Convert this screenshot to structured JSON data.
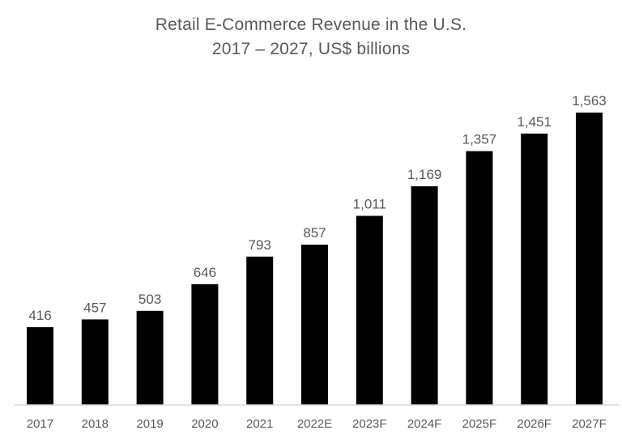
{
  "chart_data": {
    "type": "bar",
    "title": [
      "Retail E-Commerce Revenue in the U.S.",
      "2017 – 2027, US$ billions"
    ],
    "categories": [
      "2017",
      "2018",
      "2019",
      "2020",
      "2021",
      "2022E",
      "2023F",
      "2024F",
      "2025F",
      "2026F",
      "2027F"
    ],
    "values": [
      416,
      457,
      503,
      646,
      793,
      857,
      1011,
      1169,
      1357,
      1451,
      1563
    ],
    "data_labels": [
      "416",
      "457",
      "503",
      "646",
      "793",
      "857",
      "1,011",
      "1,169",
      "1,357",
      "1,451",
      "1,563"
    ],
    "xlabel": "",
    "ylabel": "",
    "ylim": [
      0,
      1563
    ],
    "grid": false,
    "legend": "none",
    "bar_color": "#000000",
    "text_color": "#595959",
    "axis_color": "#d9d9d9"
  }
}
